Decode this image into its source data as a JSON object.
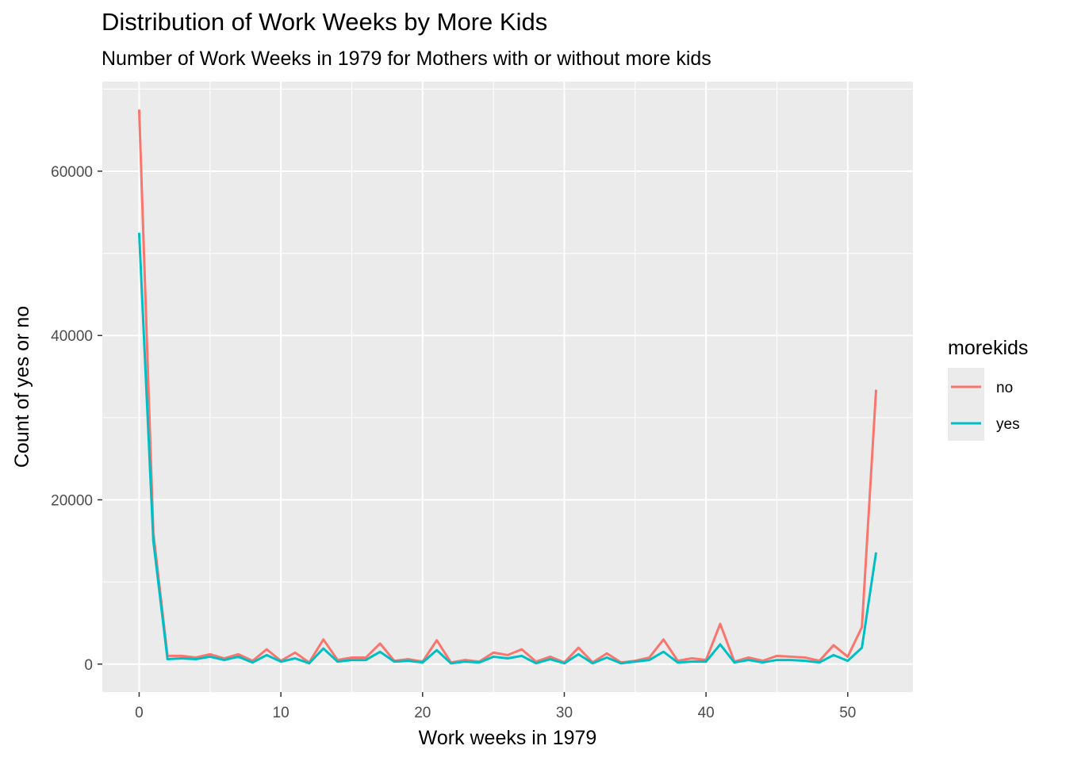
{
  "chart_data": {
    "type": "line",
    "title": "Distribution of Work Weeks by More Kids",
    "subtitle": "Number of Work Weeks in 1979 for Mothers with or without more kids",
    "xlabel": "Work weeks in 1979",
    "ylabel": "Count of yes or no",
    "xlim": [
      -2.6,
      54.6
    ],
    "ylim": [
      -3400,
      70900
    ],
    "x_ticks": [
      0,
      10,
      20,
      30,
      40,
      50
    ],
    "y_ticks": [
      0,
      20000,
      40000,
      60000
    ],
    "grid": true,
    "legend": {
      "title": "morekids",
      "position": "right"
    },
    "x": [
      0,
      1,
      2,
      3,
      4,
      5,
      6,
      7,
      8,
      9,
      10,
      11,
      12,
      13,
      14,
      15,
      16,
      17,
      18,
      19,
      20,
      21,
      22,
      23,
      24,
      25,
      26,
      27,
      28,
      29,
      30,
      31,
      32,
      33,
      34,
      35,
      36,
      37,
      38,
      39,
      40,
      41,
      42,
      43,
      44,
      45,
      46,
      47,
      48,
      49,
      50,
      51,
      52
    ],
    "series": [
      {
        "name": "no",
        "color": "#F8766D",
        "values": [
          67500,
          16000,
          1000,
          1000,
          800,
          1200,
          700,
          1200,
          400,
          1800,
          400,
          1400,
          200,
          3000,
          500,
          800,
          800,
          2500,
          400,
          600,
          300,
          2900,
          200,
          500,
          300,
          1400,
          1100,
          1800,
          300,
          900,
          200,
          2000,
          200,
          1300,
          200,
          400,
          800,
          3000,
          400,
          700,
          500,
          4900,
          300,
          800,
          400,
          1000,
          900,
          800,
          400,
          2300,
          900,
          4500,
          33400
        ]
      },
      {
        "name": "yes",
        "color": "#00BFC4",
        "values": [
          52500,
          15000,
          600,
          700,
          600,
          900,
          500,
          900,
          200,
          1100,
          300,
          700,
          100,
          1900,
          300,
          500,
          500,
          1500,
          300,
          400,
          200,
          1700,
          100,
          300,
          200,
          900,
          700,
          1000,
          100,
          600,
          100,
          1200,
          100,
          800,
          100,
          300,
          500,
          1500,
          200,
          300,
          300,
          2400,
          200,
          500,
          200,
          500,
          500,
          400,
          200,
          1100,
          400,
          2000,
          13600
        ]
      }
    ]
  }
}
